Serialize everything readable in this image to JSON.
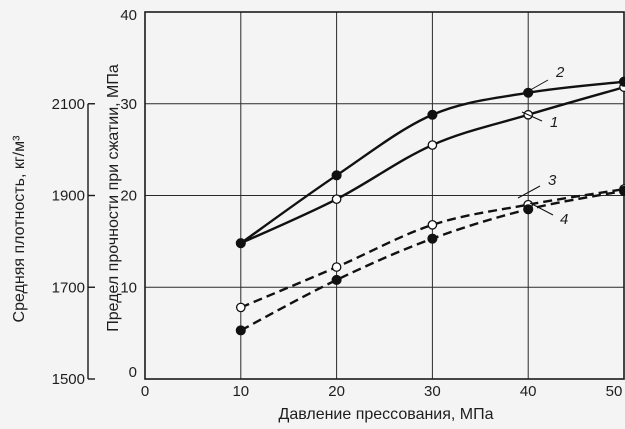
{
  "chart_data": {
    "type": "line",
    "xlabel": "Давление прессования, МПа",
    "ylabel_left": "Средняя плотность, кг/м³",
    "ylabel_right": "Предел прочности при сжатии, МПа",
    "xlim": [
      0,
      50
    ],
    "ylim": [
      0,
      40
    ],
    "ylim_density": [
      1500,
      2300
    ],
    "x_ticks": [
      "0",
      "10",
      "20",
      "30",
      "40",
      "50"
    ],
    "y_ticks": [
      "0",
      "10",
      "20",
      "30",
      "40"
    ],
    "density_ticks": [
      "1500",
      "1700",
      "1900",
      "2100"
    ],
    "grid": true,
    "series": [
      {
        "name": "1",
        "line_style": "solid",
        "marker": "open-circle",
        "x": [
          10,
          20,
          30,
          40,
          50
        ],
        "y": [
          14.8,
          19.6,
          25.5,
          28.8,
          31.8
        ]
      },
      {
        "name": "2",
        "line_style": "solid",
        "marker": "filled-circle",
        "x": [
          10,
          20,
          30,
          40,
          50
        ],
        "y": [
          14.8,
          22.2,
          28.8,
          31.2,
          32.4
        ]
      },
      {
        "name": "3",
        "line_style": "dashed",
        "marker": "open-circle",
        "x": [
          10,
          20,
          30,
          40,
          50
        ],
        "y": [
          7.8,
          12.2,
          16.8,
          19.0,
          20.7
        ]
      },
      {
        "name": "4",
        "line_style": "dashed",
        "marker": "filled-circle",
        "x": [
          10,
          20,
          30,
          40,
          50
        ],
        "y": [
          5.3,
          10.8,
          15.3,
          18.5,
          20.5
        ]
      }
    ]
  }
}
